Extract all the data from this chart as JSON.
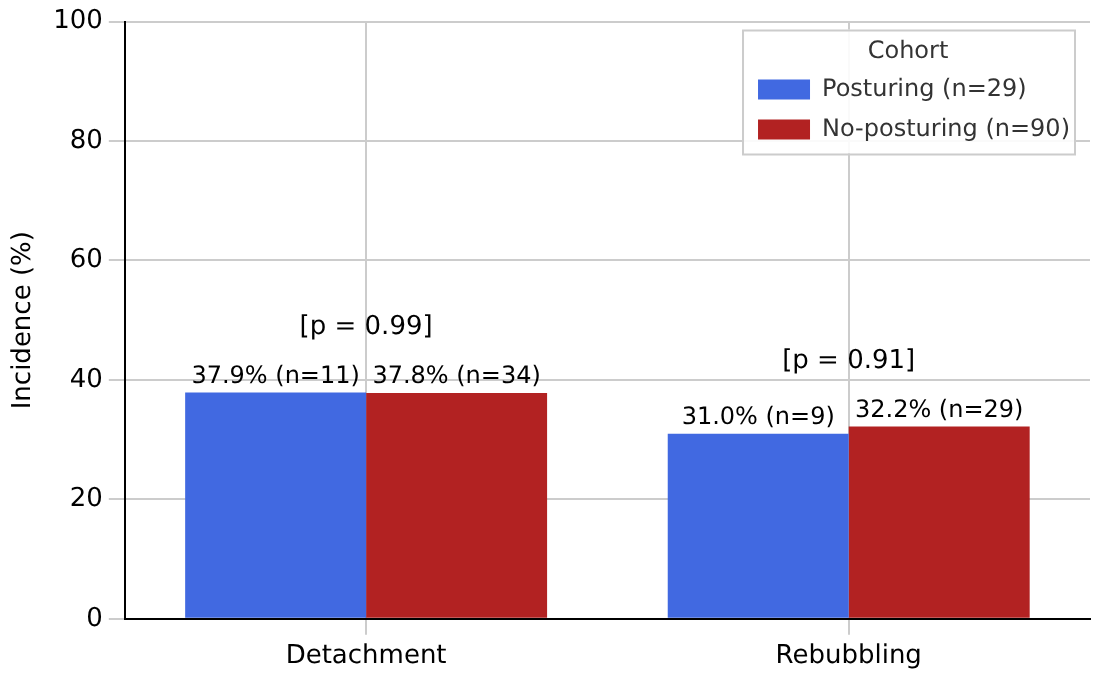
{
  "chart_data": {
    "type": "bar",
    "ylabel": "Incidence (%)",
    "legend_title": "Cohort",
    "categories": [
      "Detachment",
      "Rebubbling"
    ],
    "series": [
      {
        "name": "Posturing (n=29)",
        "color": "#4169e1",
        "values": [
          37.9,
          31.0
        ],
        "value_labels": [
          "37.9% (n=11)",
          "31.0% (n=9)"
        ]
      },
      {
        "name": "No-posturing (n=90)",
        "color": "#b22222",
        "values": [
          37.8,
          32.2
        ],
        "value_labels": [
          "37.8% (n=34)",
          "32.2% (n=29)"
        ]
      }
    ],
    "annotations": [
      "[p = 0.99]",
      "[p = 0.91]"
    ],
    "ylim": [
      0,
      100
    ],
    "yticks": [
      0,
      20,
      40,
      60,
      80,
      100
    ],
    "grid": true,
    "legend": "top right"
  }
}
